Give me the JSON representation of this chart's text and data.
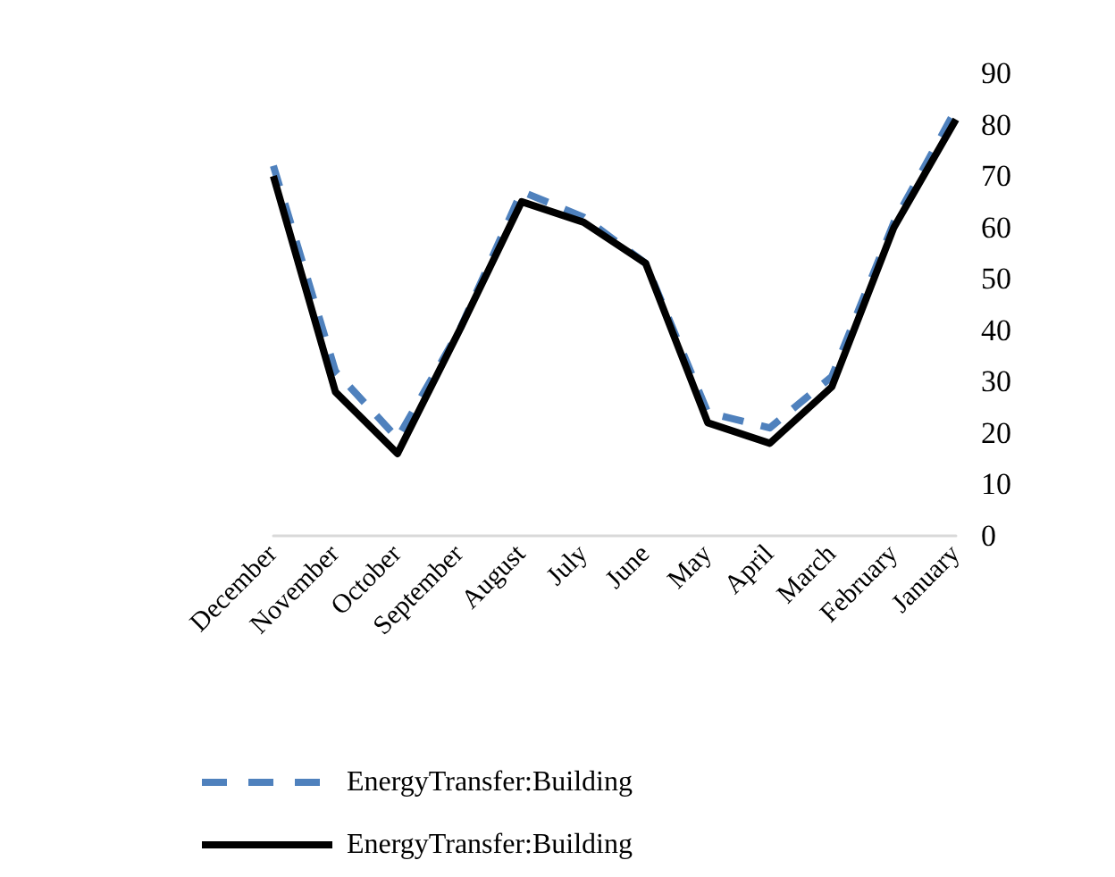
{
  "chart_data": {
    "type": "line",
    "categories": [
      "December",
      "November",
      "October",
      "September",
      "August",
      "July",
      "June",
      "May",
      "April",
      "March",
      "February",
      "January"
    ],
    "series": [
      {
        "name": "EnergyTransfer:Building",
        "color": "#4f81bd",
        "line_style": "dashed",
        "values": [
          72,
          32,
          19,
          40,
          67,
          62,
          53,
          24,
          21,
          31,
          61,
          83
        ]
      },
      {
        "name": "EnergyTransfer:Building",
        "color": "#000000",
        "line_style": "solid",
        "values": [
          70,
          28,
          16,
          40,
          65,
          61,
          53,
          22,
          18,
          29,
          60,
          81
        ]
      }
    ],
    "ylim": [
      0,
      90
    ],
    "yticks": [
      0,
      10,
      20,
      30,
      40,
      50,
      60,
      70,
      80,
      90
    ],
    "grid": false,
    "legend": "bottom",
    "marker": "none"
  }
}
